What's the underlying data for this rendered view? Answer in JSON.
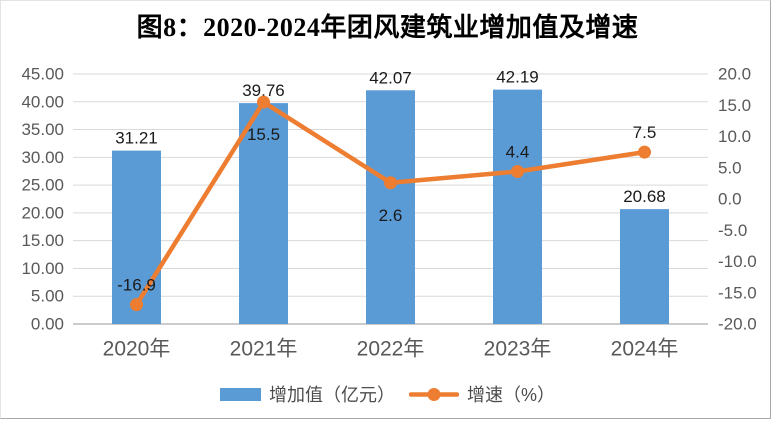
{
  "title": "图8：2020-2024年团风建筑业增加值及增速",
  "chart_data": {
    "type": "combo",
    "categories": [
      "2020年",
      "2021年",
      "2022年",
      "2023年",
      "2024年"
    ],
    "series": [
      {
        "name": "增加值（亿元）",
        "chart": "bar",
        "axis": "left",
        "color": "#5B9BD5",
        "values": [
          31.21,
          39.76,
          42.07,
          42.19,
          20.68
        ],
        "data_labels": [
          "31.21",
          "39.76",
          "42.07",
          "42.19",
          "20.68"
        ]
      },
      {
        "name": "增速（%）",
        "chart": "line",
        "axis": "right",
        "color": "#ED7D31",
        "values": [
          -16.9,
          15.5,
          2.6,
          4.4,
          7.5
        ],
        "data_labels": [
          "-16.9",
          "15.5",
          "2.6",
          "4.4",
          "7.5"
        ],
        "label_side": [
          "above",
          "below",
          "below",
          "above",
          "above"
        ]
      }
    ],
    "left_axis": {
      "min": 0,
      "max": 45,
      "step": 5,
      "ticks": [
        "45.00",
        "40.00",
        "35.00",
        "30.00",
        "25.00",
        "20.00",
        "15.00",
        "10.00",
        "5.00",
        "0.00"
      ]
    },
    "right_axis": {
      "min": -20,
      "max": 20,
      "step": 5,
      "ticks": [
        "20.0",
        "15.0",
        "10.0",
        "5.0",
        "0.0",
        "-5.0",
        "-10.0",
        "-15.0",
        "-20.0"
      ]
    },
    "grid": true,
    "legend_position": "bottom"
  },
  "legend": {
    "items": [
      {
        "label": "增加值（亿元）",
        "swatch": "bar"
      },
      {
        "label": "增速（%）",
        "swatch": "line-marker"
      }
    ]
  },
  "colors": {
    "bar": "#5B9BD5",
    "line": "#ED7D31",
    "grid": "#D9D9D9",
    "axis_line": "#CBCBCB",
    "tick_text": "#595959",
    "data_label": "#1A1A1A",
    "title_text": "#000000"
  }
}
